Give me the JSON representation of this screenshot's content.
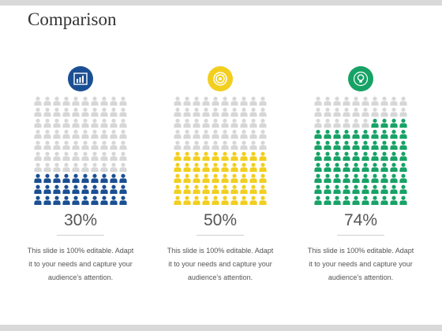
{
  "slide": {
    "title": "Comparison"
  },
  "colors": {
    "inactive": "#d7d7d7",
    "text": "#555555"
  },
  "grid": {
    "rows": 10,
    "cols": 10
  },
  "items": [
    {
      "percent_label": "30%",
      "fraction": 0.3,
      "color": "#1b4f93",
      "icon": "bar-chart-icon",
      "description": "This slide is 100% editable. Adapt it to your needs and capture your audience's attention."
    },
    {
      "percent_label": "50%",
      "fraction": 0.5,
      "color": "#f2cf1f",
      "icon": "target-icon",
      "description": "This slide is 100% editable. Adapt it to your needs and capture your audience's attention."
    },
    {
      "percent_label": "74%",
      "fraction": 0.74,
      "color": "#17a266",
      "icon": "lightbulb-icon",
      "description": "This slide is 100% editable. Adapt it to your needs and capture your audience's attention."
    }
  ]
}
